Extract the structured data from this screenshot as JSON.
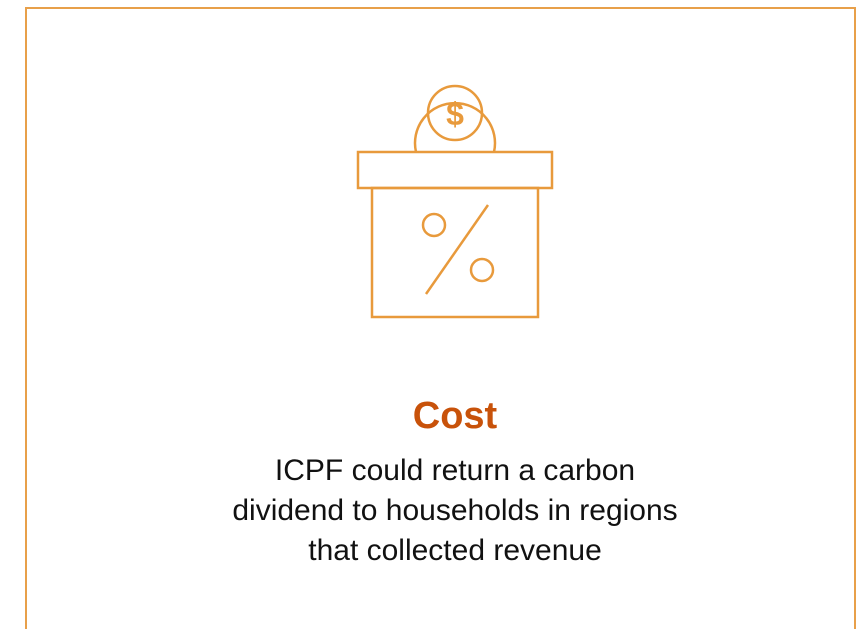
{
  "card": {
    "icon_symbol": "$",
    "title": "Cost",
    "body_lines": [
      "ICPF could return a carbon",
      "dividend to households in regions",
      "that collected revenue"
    ]
  }
}
